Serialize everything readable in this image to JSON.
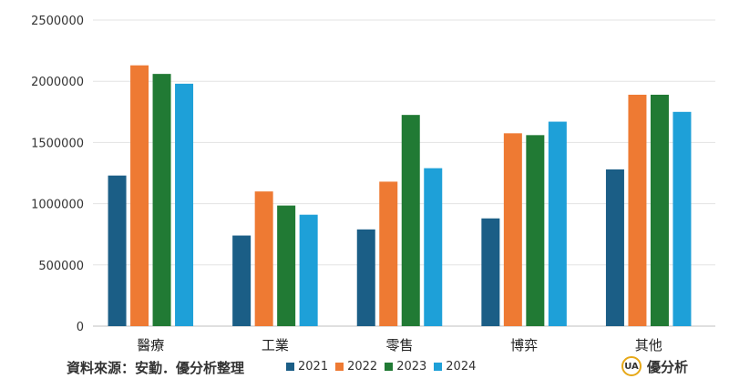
{
  "chart_data": {
    "type": "bar",
    "categories": [
      "醫療",
      "工業",
      "零售",
      "博弈",
      "其他"
    ],
    "series": [
      {
        "name": "2021",
        "color": "#1b5e86",
        "values": [
          1230000,
          740000,
          790000,
          880000,
          1280000
        ]
      },
      {
        "name": "2022",
        "color": "#ee7a33",
        "values": [
          2130000,
          1100000,
          1180000,
          1575000,
          1890000
        ]
      },
      {
        "name": "2023",
        "color": "#217a34",
        "values": [
          2060000,
          985000,
          1725000,
          1560000,
          1890000
        ]
      },
      {
        "name": "2024",
        "color": "#1ea0d8",
        "values": [
          1980000,
          910000,
          1290000,
          1670000,
          1750000
        ]
      }
    ],
    "ylim": [
      0,
      2500000
    ],
    "yticks": [
      0,
      500000,
      1000000,
      1500000,
      2000000,
      2500000
    ],
    "ytick_labels": [
      "0",
      "500000",
      "1000000",
      "1500000",
      "2000000",
      "2500000"
    ],
    "grid": true,
    "legend_position": "bottom"
  },
  "footer": {
    "source": "資料來源：安勤．優分析整理",
    "brand_logo": "UA",
    "brand_name": "優分析"
  }
}
